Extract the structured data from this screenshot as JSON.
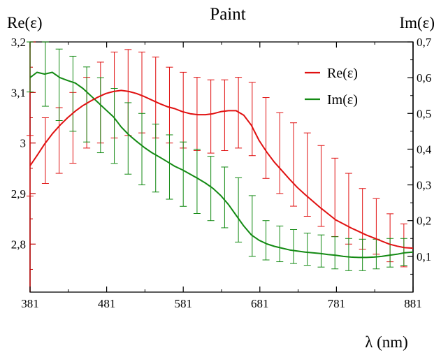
{
  "colors": {
    "re": "#e01010",
    "im": "#138a13",
    "axis": "#c00000",
    "frame": "#000000"
  },
  "chart_data": {
    "type": "line",
    "title": "Paint",
    "xlabel": "λ (nm)",
    "ylabel_left": "Re(ε)",
    "ylabel_right": "Im(ε)",
    "x_ticks": [
      "381",
      "481",
      "581",
      "681",
      "781",
      "881"
    ],
    "x_tick_values": [
      381,
      481,
      581,
      681,
      781,
      881
    ],
    "y_left_ticks": [
      "3,2",
      "3,1",
      "3",
      "2,9",
      "2,8"
    ],
    "y_left_tick_values": [
      3.2,
      3.1,
      3.0,
      2.9,
      2.8
    ],
    "y_right_ticks": [
      "0,7",
      "0,6",
      "0,5",
      "0,4",
      "0,3",
      "0,2",
      "0,1"
    ],
    "y_right_tick_values": [
      0.7,
      0.6,
      0.5,
      0.4,
      0.3,
      0.2,
      0.1
    ],
    "xlim": [
      381,
      881
    ],
    "ylim_left": [
      2.705,
      3.2
    ],
    "ylim_right": [
      0.0,
      0.7
    ],
    "legend": {
      "placement": "top-right",
      "entries": [
        "Re(ε)",
        "Im(ε)"
      ]
    },
    "series": [
      {
        "name": "Re(ε)",
        "axis": "left",
        "x": [
          381,
          390,
          400,
          410,
          420,
          430,
          440,
          450,
          460,
          470,
          480,
          490,
          500,
          510,
          520,
          530,
          540,
          550,
          560,
          570,
          580,
          590,
          600,
          610,
          620,
          630,
          640,
          650,
          660,
          670,
          680,
          690,
          700,
          710,
          720,
          730,
          740,
          750,
          760,
          770,
          780,
          790,
          800,
          810,
          820,
          830,
          840,
          850,
          860,
          870,
          881
        ],
        "y": [
          2.955,
          2.975,
          2.998,
          3.018,
          3.035,
          3.05,
          3.063,
          3.074,
          3.083,
          3.091,
          3.098,
          3.102,
          3.104,
          3.102,
          3.098,
          3.092,
          3.085,
          3.078,
          3.072,
          3.068,
          3.062,
          3.058,
          3.056,
          3.056,
          3.058,
          3.062,
          3.064,
          3.064,
          3.055,
          3.035,
          3.005,
          2.982,
          2.962,
          2.945,
          2.928,
          2.912,
          2.898,
          2.885,
          2.872,
          2.86,
          2.848,
          2.84,
          2.832,
          2.825,
          2.818,
          2.812,
          2.806,
          2.8,
          2.796,
          2.793,
          2.792
        ],
        "errorbars": {
          "x": [
            381,
            401,
            419,
            437,
            455,
            473,
            491,
            509,
            527,
            545,
            563,
            581,
            599,
            617,
            635,
            653,
            671,
            689,
            707,
            725,
            743,
            761,
            779,
            797,
            815,
            833,
            851,
            869
          ],
          "low": [
            2.895,
            2.92,
            2.94,
            2.96,
            2.99,
            3.0,
            3.01,
            3.015,
            3.02,
            3.01,
            3.0,
            2.99,
            2.985,
            2.98,
            2.985,
            2.99,
            2.975,
            2.93,
            2.9,
            2.875,
            2.855,
            2.835,
            2.815,
            2.8,
            2.79,
            2.78,
            2.765,
            2.755
          ],
          "high": [
            3.015,
            3.05,
            3.07,
            3.1,
            3.13,
            3.16,
            3.18,
            3.185,
            3.18,
            3.17,
            3.15,
            3.14,
            3.13,
            3.125,
            3.125,
            3.13,
            3.12,
            3.09,
            3.06,
            3.04,
            3.02,
            2.995,
            2.97,
            2.94,
            2.91,
            2.89,
            2.86,
            2.84
          ]
        }
      },
      {
        "name": "Im(ε)",
        "axis": "right",
        "x": [
          381,
          390,
          400,
          410,
          420,
          430,
          440,
          450,
          460,
          470,
          480,
          490,
          500,
          510,
          520,
          530,
          540,
          550,
          560,
          570,
          580,
          590,
          600,
          610,
          620,
          630,
          640,
          650,
          660,
          670,
          680,
          690,
          700,
          710,
          720,
          730,
          740,
          750,
          760,
          770,
          780,
          790,
          800,
          810,
          820,
          830,
          840,
          850,
          860,
          870,
          881
        ],
        "y": [
          0.6,
          0.615,
          0.61,
          0.615,
          0.6,
          0.592,
          0.585,
          0.57,
          0.55,
          0.53,
          0.51,
          0.49,
          0.462,
          0.44,
          0.422,
          0.405,
          0.39,
          0.378,
          0.365,
          0.352,
          0.342,
          0.33,
          0.318,
          0.305,
          0.29,
          0.27,
          0.245,
          0.215,
          0.185,
          0.16,
          0.145,
          0.135,
          0.128,
          0.123,
          0.118,
          0.115,
          0.112,
          0.11,
          0.108,
          0.105,
          0.103,
          0.1,
          0.098,
          0.097,
          0.097,
          0.098,
          0.1,
          0.103,
          0.106,
          0.11,
          0.112
        ],
        "errorbars": {
          "x": [
            381,
            401,
            419,
            437,
            455,
            473,
            491,
            509,
            527,
            545,
            563,
            581,
            599,
            617,
            635,
            653,
            671,
            689,
            707,
            725,
            743,
            761,
            779,
            797,
            815,
            833,
            851,
            869
          ],
          "low": [
            0.56,
            0.52,
            0.48,
            0.45,
            0.42,
            0.39,
            0.36,
            0.33,
            0.3,
            0.28,
            0.26,
            0.24,
            0.22,
            0.2,
            0.18,
            0.14,
            0.1,
            0.09,
            0.085,
            0.08,
            0.075,
            0.07,
            0.065,
            0.06,
            0.06,
            0.065,
            0.07,
            0.075
          ],
          "high": [
            0.7,
            0.7,
            0.68,
            0.66,
            0.63,
            0.6,
            0.57,
            0.53,
            0.5,
            0.47,
            0.44,
            0.42,
            0.4,
            0.38,
            0.35,
            0.32,
            0.27,
            0.2,
            0.185,
            0.175,
            0.165,
            0.16,
            0.155,
            0.15,
            0.148,
            0.148,
            0.15,
            0.15
          ]
        }
      }
    ]
  }
}
